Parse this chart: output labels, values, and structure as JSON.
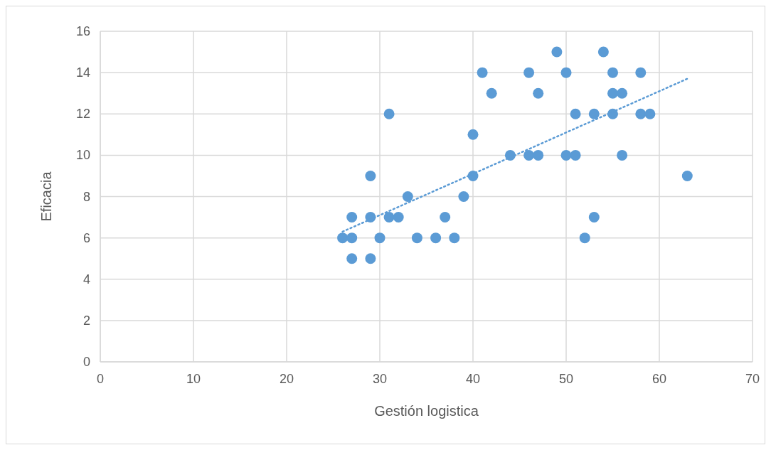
{
  "chart_data": {
    "type": "scatter",
    "xlabel": "Gestión logistica",
    "ylabel": "Eficacia",
    "xlim": [
      0,
      70
    ],
    "xticks": [
      0,
      10,
      20,
      30,
      40,
      50,
      60,
      70
    ],
    "ylim": [
      0,
      16
    ],
    "yticks": [
      0,
      2,
      4,
      6,
      8,
      10,
      12,
      14,
      16
    ],
    "grid": true,
    "marker": "circle",
    "series": [
      {
        "color": "#5b9bd5",
        "x": [
          26,
          27,
          27,
          27,
          29,
          29,
          29,
          30,
          31,
          31,
          32,
          33,
          34,
          36,
          37,
          38,
          39,
          40,
          40,
          41,
          42,
          44,
          46,
          46,
          47,
          47,
          49,
          50,
          50,
          51,
          51,
          52,
          53,
          53,
          54,
          55,
          55,
          55,
          56,
          56,
          58,
          58,
          59,
          63
        ],
        "values": [
          6,
          7,
          6,
          5,
          9,
          7,
          5,
          6,
          12,
          7,
          7,
          8,
          6,
          6,
          7,
          6,
          8,
          11,
          9,
          14,
          13,
          10,
          14,
          10,
          13,
          10,
          15,
          14,
          10,
          12,
          10,
          6,
          12,
          7,
          15,
          14,
          13,
          12,
          13,
          10,
          14,
          12,
          12,
          9
        ]
      },
      {
        "type": "line",
        "color": "#5b9bd5",
        "line_style": "dotted",
        "marker": "none",
        "x": [
          26,
          63
        ],
        "values": [
          6.3,
          13.7
        ]
      }
    ]
  }
}
